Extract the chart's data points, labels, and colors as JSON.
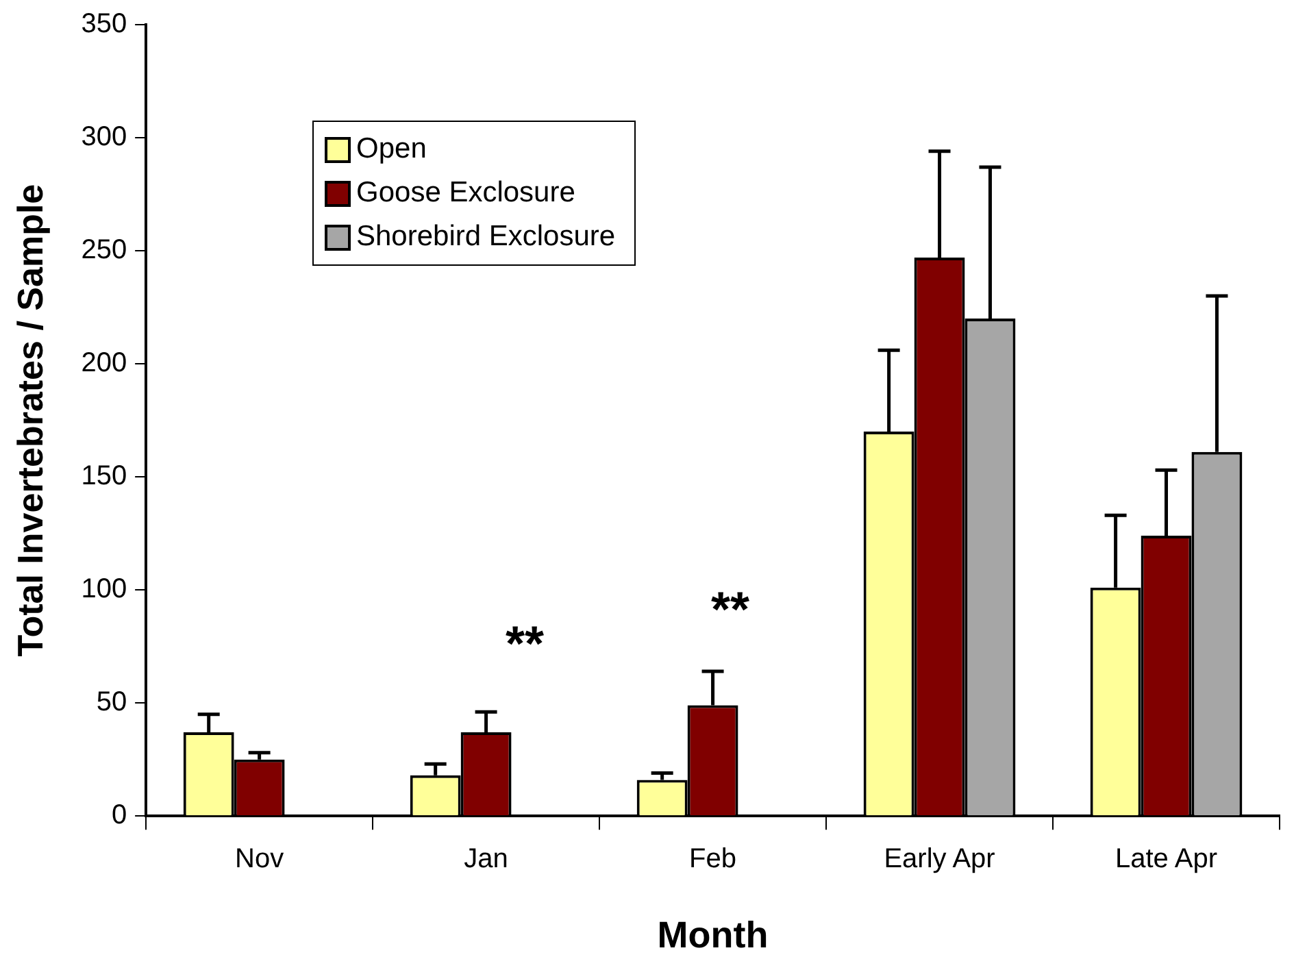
{
  "chart_data": {
    "type": "bar",
    "xlabel": "Month",
    "ylabel": "Total Invertebrates / Sample",
    "categories": [
      "Nov",
      "Jan",
      "Feb",
      "Early Apr",
      "Late Apr"
    ],
    "series": [
      {
        "name": "Open",
        "color": "#ffff99",
        "values": [
          37,
          18,
          16,
          170,
          101
        ],
        "errors": [
          [
            37,
            45
          ],
          [
            18,
            23
          ],
          [
            16,
            19
          ],
          [
            170,
            206
          ],
          [
            101,
            133
          ]
        ]
      },
      {
        "name": "Goose Exclosure",
        "color": "#800000",
        "values": [
          25,
          37,
          49,
          247,
          124
        ],
        "errors": [
          [
            25,
            28
          ],
          [
            37,
            46
          ],
          [
            49,
            64
          ],
          [
            247,
            294
          ],
          [
            124,
            153
          ]
        ]
      },
      {
        "name": "Shorebird Exclosure",
        "color": "#a6a6a6",
        "values": [
          0,
          0,
          0,
          220,
          161
        ],
        "errors": [
          null,
          null,
          null,
          [
            220,
            287
          ],
          [
            161,
            230
          ]
        ]
      }
    ],
    "ylim": [
      0,
      350
    ],
    "yticks": [
      0,
      50,
      100,
      150,
      200,
      250,
      300,
      350
    ],
    "grid": false,
    "legend": "top left",
    "annotations": [
      "**",
      "**"
    ]
  }
}
